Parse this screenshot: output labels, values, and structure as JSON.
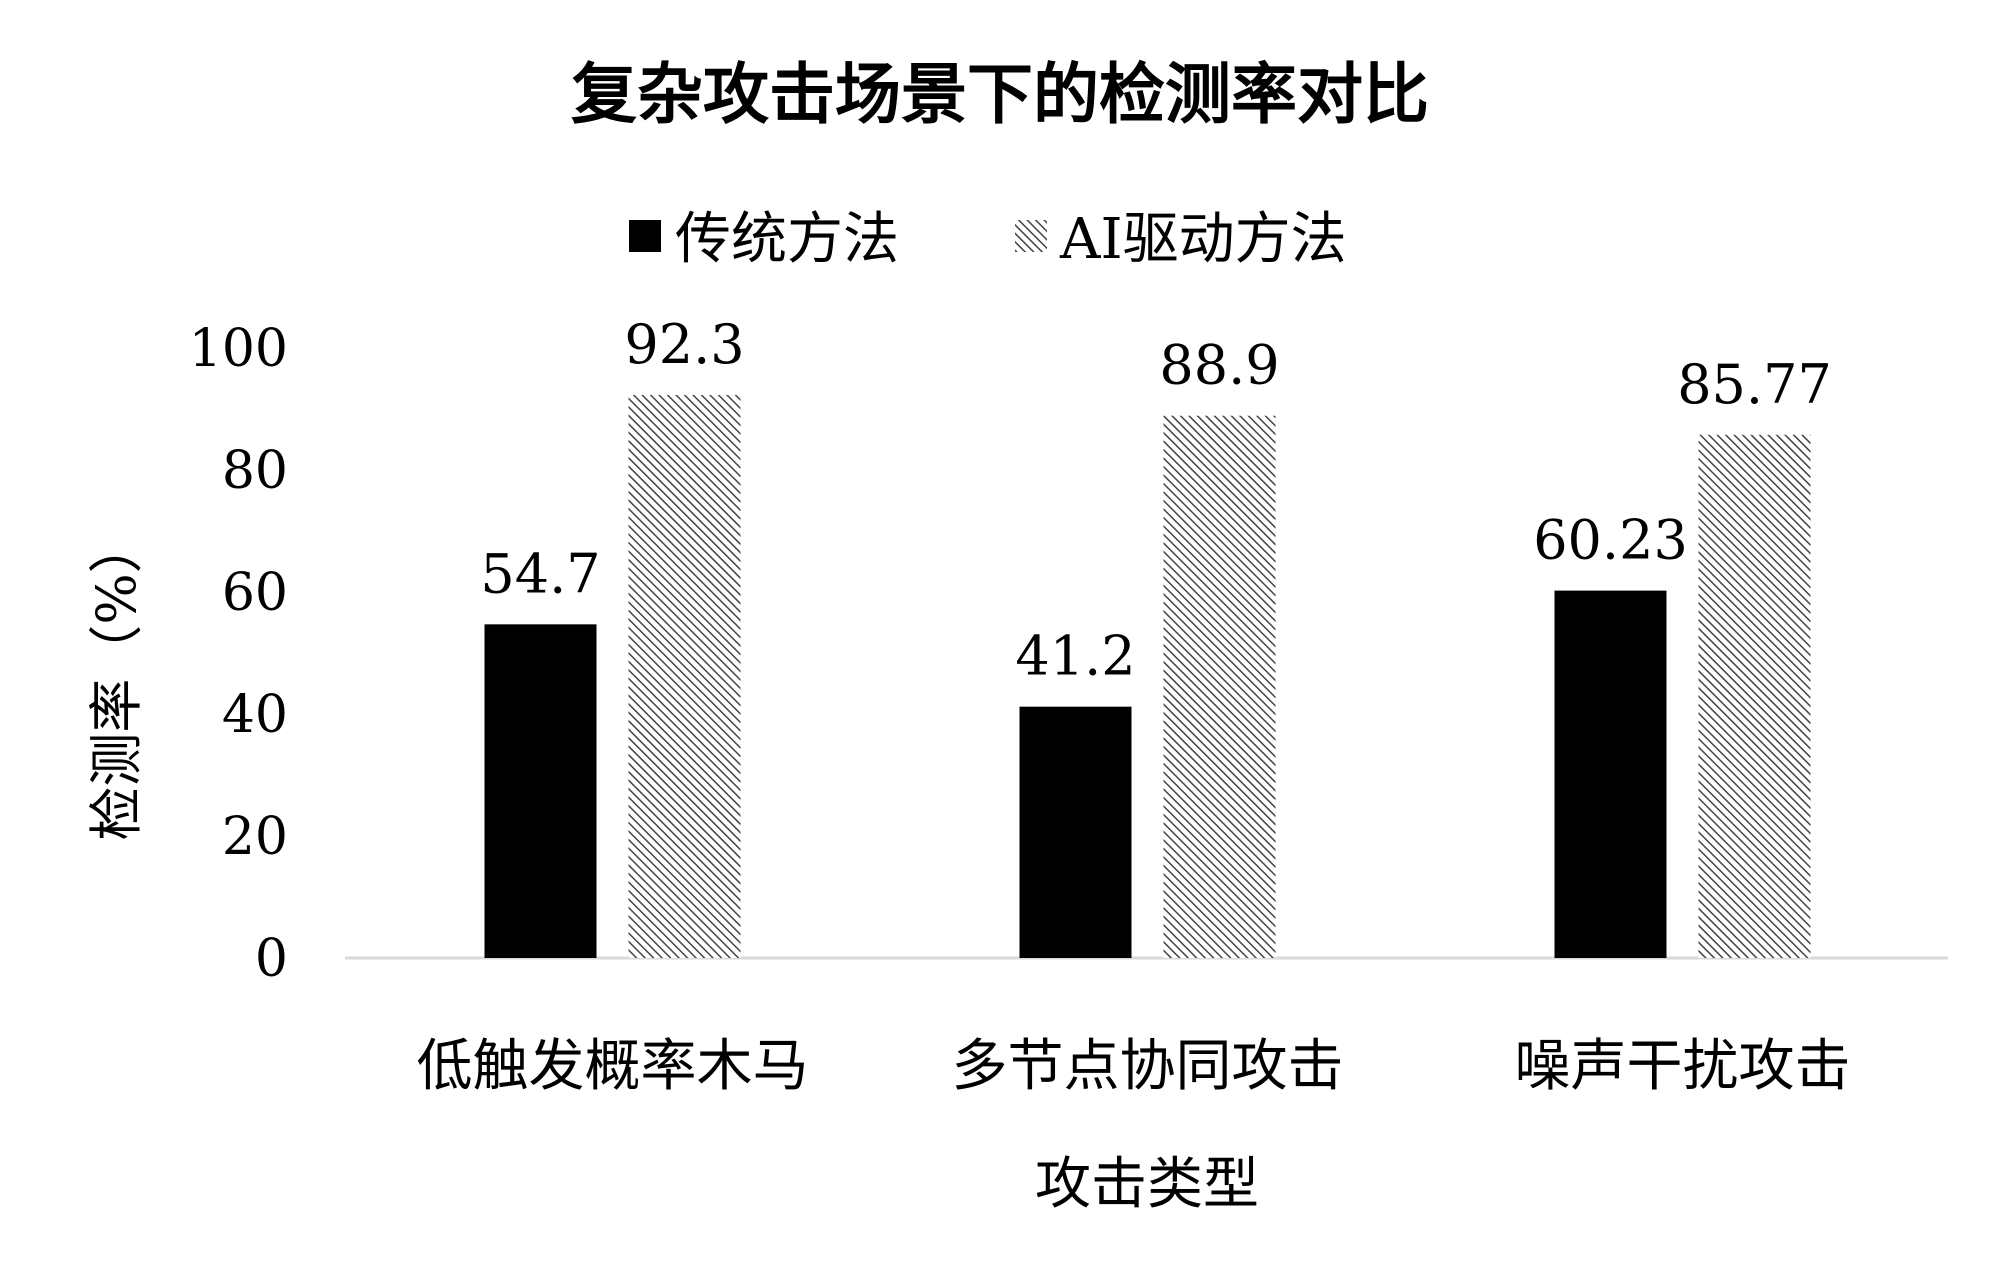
{
  "chart_data": {
    "type": "bar",
    "title": "复杂攻击场景下的检测率对比",
    "xlabel": "攻击类型",
    "ylabel": "检测率（%）",
    "categories": [
      "低触发概率木马",
      "多节点协同攻击",
      "噪声干扰攻击"
    ],
    "series": [
      {
        "name": "传统方法",
        "values": [
          54.7,
          41.2,
          60.23
        ],
        "color": "#000000",
        "fill": "solid"
      },
      {
        "name": "AI驱动方法",
        "values": [
          92.3,
          88.9,
          85.77
        ],
        "color": "#666666",
        "fill": "diagonal-hatch"
      }
    ],
    "data_labels": [
      [
        "54.7",
        "41.2",
        "60.23"
      ],
      [
        "92.3",
        "88.9",
        "85.77"
      ]
    ],
    "ylim": [
      0,
      100
    ],
    "yticks": [
      "0",
      "20",
      "40",
      "60",
      "80",
      "100"
    ],
    "grid": false,
    "legend_position": "top-center",
    "axis_line_color": "#d9d9d9"
  }
}
